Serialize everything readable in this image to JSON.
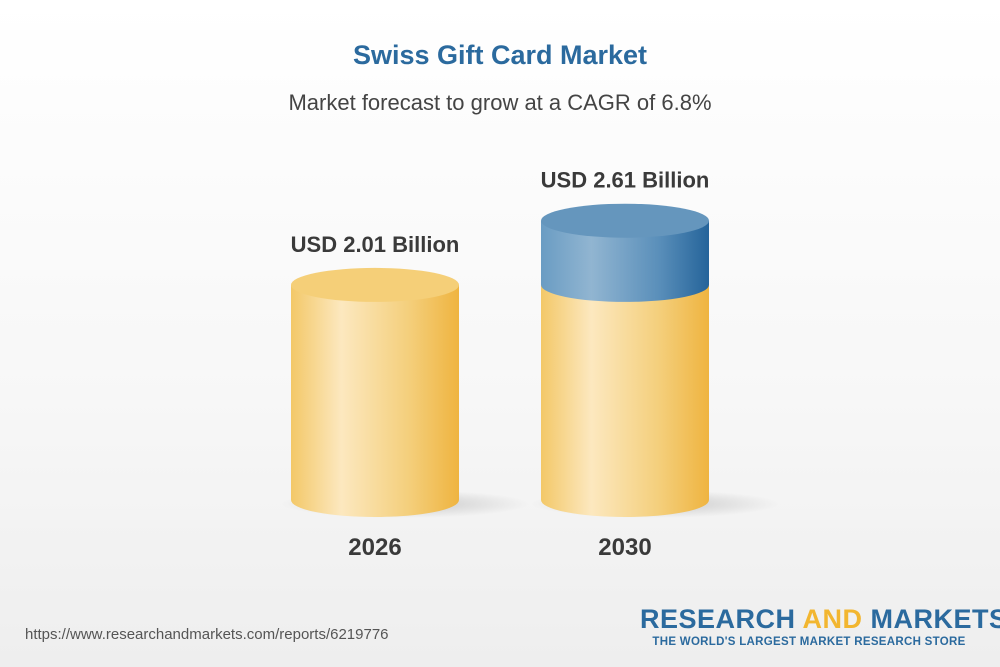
{
  "chart_data": {
    "type": "bar",
    "style": "3d-cylinder",
    "title": "Swiss Gift Card Market",
    "subtitle": "Market forecast to grow at a CAGR of 6.8%",
    "categories": [
      "2026",
      "2030"
    ],
    "values": [
      2.01,
      2.61
    ],
    "data_labels": [
      "USD 2.01 Billion",
      "USD 2.61 Billion"
    ],
    "unit": "USD Billion",
    "colors": {
      "base": "#f2be55",
      "growth": "#2d6c9f"
    }
  },
  "footer": {
    "url": "https://www.researchandmarkets.com/reports/6219776",
    "logo_part1": "RESEARCH ",
    "logo_part2": "AND",
    "logo_part3": " MARKETS",
    "logo_tagline": "THE WORLD'S LARGEST MARKET RESEARCH STORE"
  }
}
